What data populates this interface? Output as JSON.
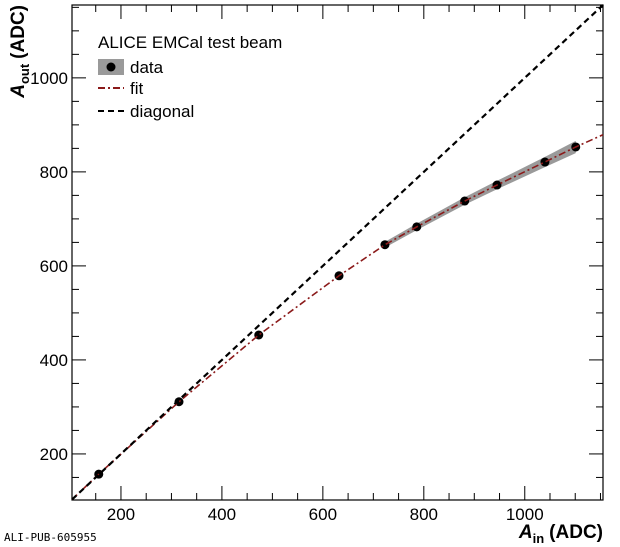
{
  "chart_data": {
    "type": "line",
    "legend_title": "ALICE EMCal test beam",
    "x_label": {
      "symbol": "A",
      "subscript": "in",
      "unit": "(ADC)"
    },
    "y_label": {
      "symbol": "A",
      "subscript": "out",
      "unit": "(ADC)"
    },
    "watermark": "ALI-PUB-605955",
    "xlim": [
      103,
      1155
    ],
    "ylim": [
      102,
      1155
    ],
    "xticks": [
      200,
      400,
      600,
      800,
      1000
    ],
    "yticks": [
      200,
      400,
      600,
      800,
      1000
    ],
    "xminorticks": [
      150,
      250,
      300,
      350,
      450,
      500,
      550,
      650,
      700,
      750,
      850,
      900,
      950,
      1050,
      1100,
      1150
    ],
    "yminorticks": [
      150,
      250,
      300,
      350,
      450,
      500,
      550,
      650,
      700,
      750,
      850,
      900,
      950,
      1050,
      1100,
      1150
    ],
    "legend": "upper left",
    "series": [
      {
        "name": "data",
        "style": "points",
        "color": "#000000",
        "band_color": "#9a9a9a",
        "x": [
          156,
          315,
          473,
          632,
          723,
          786,
          881,
          945,
          1040,
          1101
        ],
        "values": [
          157,
          311,
          453,
          579,
          645,
          683,
          738,
          772,
          821,
          853
        ],
        "errors": [
          null,
          null,
          null,
          null,
          6,
          7,
          8,
          9,
          11,
          13
        ]
      },
      {
        "name": "fit",
        "style": "dashdot",
        "color": "#8b1a1a",
        "x": [
          103,
          156,
          315,
          473,
          632,
          723,
          786,
          881,
          945,
          1040,
          1101,
          1155
        ],
        "values": [
          103,
          157,
          311,
          453,
          579,
          645,
          683,
          738,
          772,
          821,
          853,
          879
        ]
      },
      {
        "name": "diagonal",
        "style": "dashed",
        "color": "#000000",
        "x": [
          103,
          1155
        ],
        "values": [
          103,
          1155
        ]
      }
    ]
  }
}
